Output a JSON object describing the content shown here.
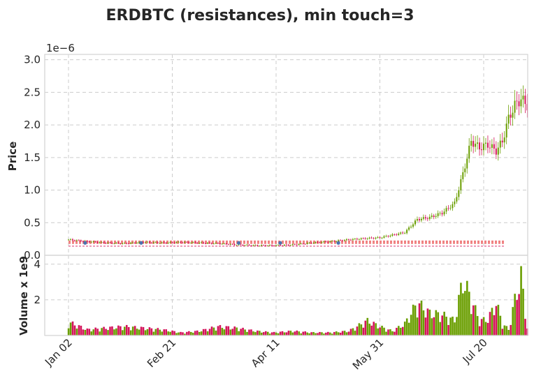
{
  "chart_data": {
    "type": "candlestick",
    "title": "ERDBTC (resistances), min touch=3",
    "price_panel": {
      "ylabel": "Price",
      "offset_label": "1e−6",
      "yticks": [
        "0.0",
        "0.5",
        "1.0",
        "1.5",
        "2.0",
        "2.5",
        "3.0"
      ],
      "ylim": [
        0,
        3.05
      ],
      "up_color": "#6a9e00",
      "down_color": "#d4145a",
      "resistance_color": "#f08080",
      "resistance_levels": [
        0.18,
        0.19,
        0.2,
        0.21,
        0.22
      ],
      "touch_marker_color": "#4c72b0",
      "grid": true
    },
    "volume_panel": {
      "ylabel": "Volume x 1e9",
      "yticks": [
        "2",
        "4"
      ],
      "ylim": [
        0,
        4.5
      ],
      "grid": true
    },
    "xaxis": {
      "tick_labels": [
        "Jan 02",
        "Feb 21",
        "Apr 11",
        "May 31",
        "Jul 20"
      ],
      "tick_days": [
        0,
        50,
        100,
        150,
        200
      ]
    },
    "series": [
      {
        "days": [
          0,
          9,
          18,
          27,
          36,
          45,
          54,
          63,
          72,
          81,
          90,
          99,
          108,
          117,
          126,
          135,
          144,
          150,
          156,
          162,
          168,
          174,
          180,
          186,
          190,
          194,
          198,
          202,
          206,
          209,
          212,
          215,
          218,
          221
        ],
        "close": [
          0.24,
          0.21,
          0.19,
          0.18,
          0.2,
          0.19,
          0.2,
          0.19,
          0.18,
          0.16,
          0.15,
          0.15,
          0.16,
          0.19,
          0.21,
          0.24,
          0.26,
          0.27,
          0.31,
          0.35,
          0.55,
          0.58,
          0.65,
          0.8,
          1.25,
          1.75,
          1.65,
          1.7,
          1.6,
          1.75,
          2.1,
          2.3,
          2.4,
          2.3
        ]
      }
    ],
    "volume": [
      {
        "days": [
          0,
          9,
          18,
          27,
          36,
          45,
          54,
          63,
          72,
          81,
          90,
          99,
          108,
          117,
          126,
          135,
          144,
          150,
          156,
          162,
          168,
          174,
          180,
          186,
          190,
          194,
          198,
          202,
          206,
          209,
          212,
          215,
          218,
          221
        ],
        "values": [
          0.9,
          0.4,
          0.5,
          0.6,
          0.5,
          0.4,
          0.2,
          0.3,
          0.6,
          0.5,
          0.3,
          0.2,
          0.3,
          0.2,
          0.2,
          0.3,
          1.0,
          0.6,
          0.3,
          0.8,
          2.2,
          1.5,
          1.4,
          1.0,
          3.8,
          2.4,
          1.0,
          1.1,
          2.2,
          0.8,
          0.4,
          2.4,
          4.0,
          0.5
        ]
      }
    ]
  }
}
